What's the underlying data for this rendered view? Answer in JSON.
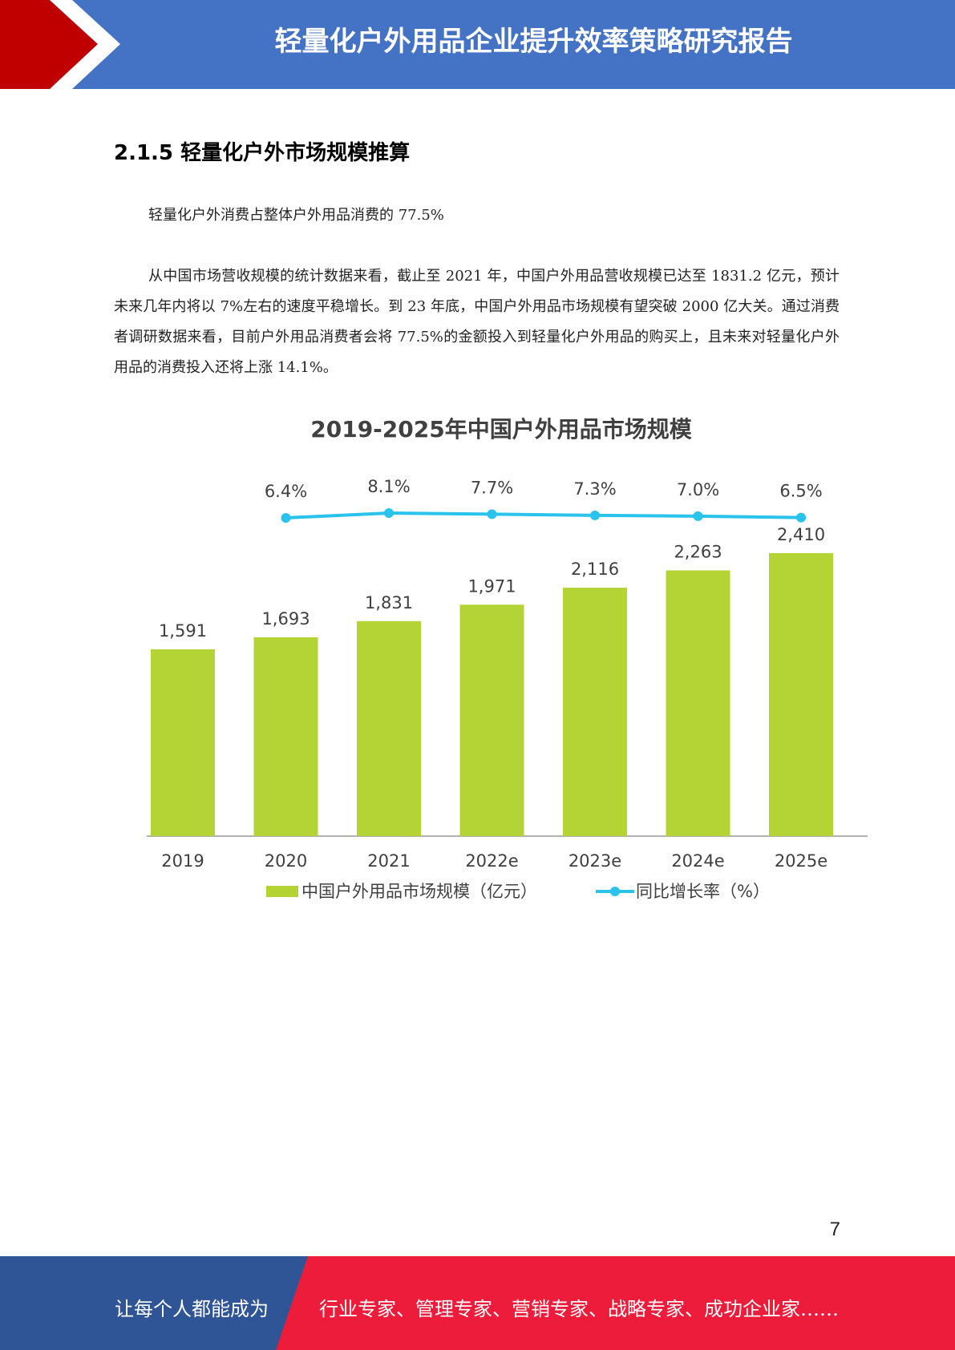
{
  "header": {
    "title": "轻量化户外用品企业提升效率策略研究报告"
  },
  "section": {
    "heading": "2.1.5  轻量化户外市场规模推算"
  },
  "paragraphs": [
    "轻量化户外消费占整体户外用品消费的 77.5%",
    "从中国市场营收规模的统计数据来看，截止至 2021 年，中国户外用品营收规模已达至 1831.2 亿元，预计未来几年内将以 7%左右的速度平稳增长。到 23 年底，中国户外用品市场规模有望突破 2000 亿大关。通过消费者调研数据来看，目前户外用品消费者会将 77.5%的金额投入到轻量化户外用品的购买上，且未来对轻量化户外用品的消费投入还将上涨 14.1%。"
  ],
  "chart_data": {
    "type": "bar",
    "title": "2019-2025年中国户外用品市场规模",
    "categories": [
      "2019",
      "2020",
      "2021",
      "2022e",
      "2023e",
      "2024e",
      "2025e"
    ],
    "series": [
      {
        "name": "中国户外用品市场规模（亿元）",
        "type": "bar",
        "color": "#b4d335",
        "values": [
          1591,
          1693,
          1831,
          1971,
          2116,
          2263,
          2410
        ],
        "labels": [
          "1,591",
          "1,693",
          "1,831",
          "1,971",
          "2,116",
          "2,263",
          "2,410"
        ]
      },
      {
        "name": "同比增长率（%）",
        "type": "line",
        "color": "#29c3ec",
        "values": [
          null,
          6.4,
          8.1,
          7.7,
          7.3,
          7.0,
          6.5
        ],
        "labels": [
          "",
          "6.4%",
          "8.1%",
          "7.7%",
          "7.3%",
          "7.0%",
          "6.5%"
        ]
      }
    ],
    "legend_position": "bottom",
    "grid": false
  },
  "page_number": "7",
  "footer": {
    "left_text": "让每个人都能成为",
    "right_text": "行业专家、管理专家、营销专家、战略专家、成功企业家……"
  },
  "colors": {
    "header_blue": "#4472c4",
    "accent_red": "#c00000",
    "footer_blue": "#2f5597",
    "footer_red": "#ee1c3b"
  }
}
